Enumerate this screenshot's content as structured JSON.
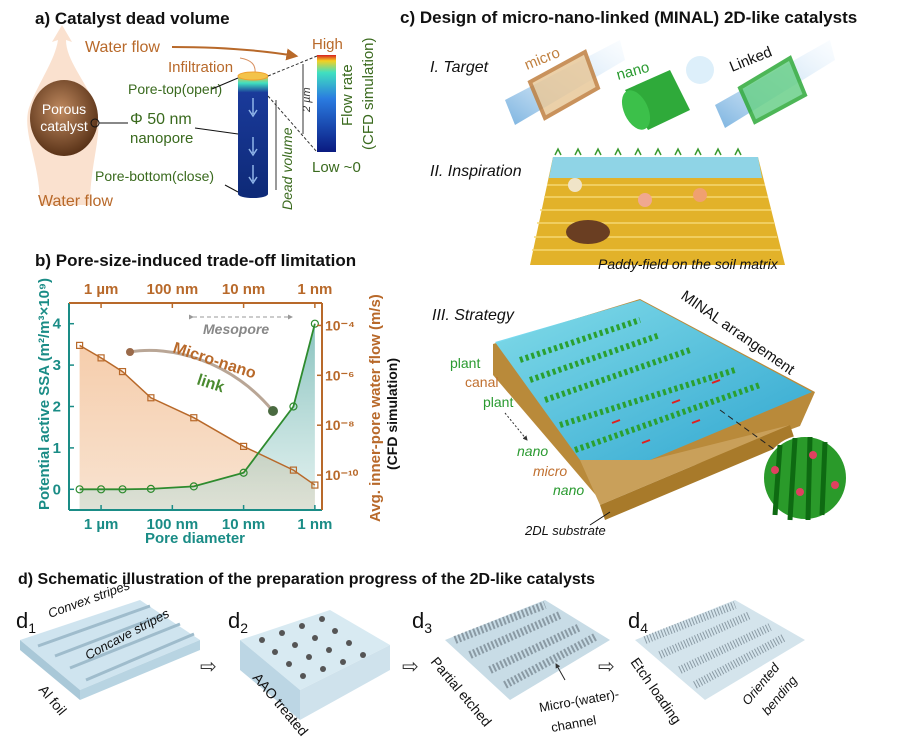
{
  "panel_a": {
    "title": "a) Catalyst dead volume",
    "water_flow_top": "Water flow",
    "water_flow_bottom": "Water flow",
    "infiltration": "Infiltration",
    "porous": "Porous",
    "catalyst": "catalyst",
    "pore_top": "Pore-top(open)",
    "diameter": "Φ 50 nm",
    "nanopore": "nanopore",
    "pore_bottom": "Pore-bottom(close)",
    "dead_volume": "Dead volume",
    "length": "2 µm",
    "colorbar_high": "High",
    "colorbar_low": "Low ~0",
    "colorbar_label": "Flow rate",
    "colorbar_sub": "(CFD simulation)"
  },
  "panel_b": {
    "title": "b) Pore-size-induced trade-off limitation",
    "mesopore": "Mesopore",
    "annotation_1": "Micro-nano",
    "annotation_2": "link",
    "right_sub": "(CFD simulation)"
  },
  "chart_data": {
    "type": "line",
    "title": "Pore-size-induced trade-off limitation",
    "xlabel": "Pore diameter",
    "x_scale": "log (reversed)",
    "x_nm": [
      2000,
      1000,
      500,
      200,
      50,
      10,
      2,
      1
    ],
    "x_ticks": [
      {
        "nm": 1000,
        "label": "1 µm"
      },
      {
        "nm": 100,
        "label": "100 nm"
      },
      {
        "nm": 10,
        "label": "10 nm"
      },
      {
        "nm": 1,
        "label": "1 nm"
      }
    ],
    "xlim_log10_nm": [
      3.45,
      -0.1
    ],
    "ylabel_left": "Potential active SSA (m²/m³×10⁹)",
    "ylim_left": [
      -0.5,
      4.5
    ],
    "yticks_left": [
      "0",
      "1",
      "2",
      "3",
      "4"
    ],
    "ylabel_right": "Avg. inner-pore water flow (m/s)",
    "ylim_right_log10": [
      -11.4,
      -3.1
    ],
    "yticks_right": [
      {
        "exp": -4,
        "label": "10⁻⁴"
      },
      {
        "exp": -6,
        "label": "10⁻⁶"
      },
      {
        "exp": -8,
        "label": "10⁻⁸"
      },
      {
        "exp": -10,
        "label": "10⁻¹⁰"
      }
    ],
    "series": [
      {
        "name": "Potential active SSA",
        "axis": "left",
        "color": "#2e8b2e",
        "values": [
          0,
          0,
          0,
          0.01,
          0.07,
          0.4,
          2.0,
          4.0
        ]
      },
      {
        "name": "Avg. inner-pore water flow (log10 m/s)",
        "axis": "right",
        "color": "#b8692a",
        "values": [
          -4.8,
          -5.3,
          -5.85,
          -6.9,
          -7.7,
          -8.85,
          -9.8,
          -10.4
        ]
      }
    ]
  },
  "panel_c": {
    "title": "c) Design of micro-nano-linked (MINAL) 2D-like catalysts",
    "target": "I. Target",
    "micro": "micro",
    "nano": "nano",
    "linked": "Linked",
    "inspiration": "II. Inspiration",
    "paddy": "Paddy-field on the soil matrix",
    "strategy": "III. Strategy",
    "arrangement": "MINAL arrangement",
    "labels": [
      "plant",
      "canal",
      "plant",
      "nano",
      "micro",
      "nano"
    ],
    "substrate": "2DL substrate"
  },
  "panel_d": {
    "title": "d) Schematic illustration of the preparation progress of the 2D-like catalysts",
    "steps": [
      {
        "id": "d",
        "sub": "1",
        "label": "Al foil"
      },
      {
        "id": "d",
        "sub": "2",
        "label": "AAO treated"
      },
      {
        "id": "d",
        "sub": "3",
        "label": "Partial etched"
      },
      {
        "id": "d",
        "sub": "4",
        "label": "Etch loading"
      }
    ],
    "convex": "Convex stripes",
    "concave": "Concave stripes",
    "channel_1": "Micro-(water)-",
    "channel_2": "channel",
    "oriented": "Oriented",
    "bending": "bending"
  }
}
